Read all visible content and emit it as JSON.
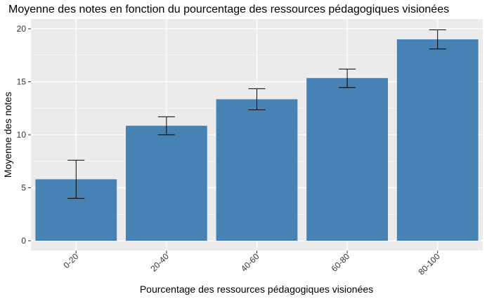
{
  "chart_data": {
    "type": "bar",
    "title": "Moyenne des notes en fonction du pourcentage des ressources pédagogiques visionées",
    "xlabel": "Pourcentage des ressources pédagogiques visionées",
    "ylabel": "Moyenne des notes",
    "categories": [
      "0-20",
      "20-40",
      "40-60",
      "60-80",
      "80-100"
    ],
    "values": [
      5.8,
      10.85,
      13.35,
      15.35,
      19.0
    ],
    "error_low": [
      4.0,
      10.0,
      12.35,
      14.45,
      18.1
    ],
    "error_high": [
      7.6,
      11.7,
      14.35,
      16.2,
      19.9
    ],
    "yticks": [
      0,
      5,
      10,
      15,
      20
    ],
    "ylim": [
      -0.95,
      21.0
    ],
    "grid": true,
    "bar_color": "#4682B4",
    "panel_color": "#EBEBEB",
    "grid_color": "#FFFFFF"
  }
}
